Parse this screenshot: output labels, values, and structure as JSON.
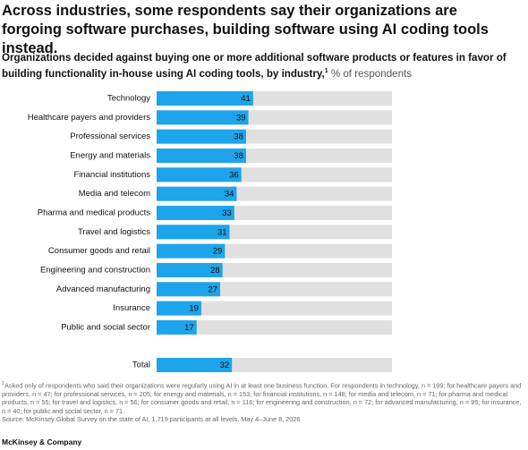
{
  "chart_data": {
    "type": "bar",
    "title": "Across industries, some respondents say their organizations are forgoing software purchases, building software using AI coding tools instead.",
    "subtitle": "Organizations decided against buying one or more additional software products or features in favor of building functionality in-house using AI coding tools, by industry,",
    "footnote_marker": "1",
    "unit": "% of respondents",
    "categories": [
      "Technology",
      "Healthcare payers and providers",
      "Professional services",
      "Energy and materials",
      "Financial institutions",
      "Media and telecom",
      "Pharma and medical products",
      "Travel and logistics",
      "Consumer goods and retail",
      "Engineering and construction",
      "Advanced manufacturing",
      "Insurance",
      "Public and social sector"
    ],
    "values": [
      41,
      39,
      38,
      38,
      36,
      34,
      33,
      31,
      29,
      28,
      27,
      19,
      17
    ],
    "total": {
      "label": "Total",
      "value": 32
    },
    "xlim": [
      0,
      100
    ],
    "color": "#1ea4ea",
    "track_color": "#e0e0e0",
    "footnote": "Asked only of respondents who said their organizations were regularly using AI in at least one business function. For respondents in technology, n = 199; for healthcare payers and providers, n = 47; for professional services, n = 205; for energy and materials, n = 153; for financial institutions, n = 148; for media and telecom, n = 71; for pharma and medical products, n = 55; for travel and logistics, n = 56; for consumer goods and retail, n = 116; for engineering and construction, n = 72; for advanced manufacturing, n = 95; for insurance, n = 40; for public and social sector, n = 71.",
    "source": "Source: McKinsey Global Survey on the state of AI, 1,719 participants at all levels, May 4–June 8, 2026",
    "footer": "McKinsey & Company"
  }
}
